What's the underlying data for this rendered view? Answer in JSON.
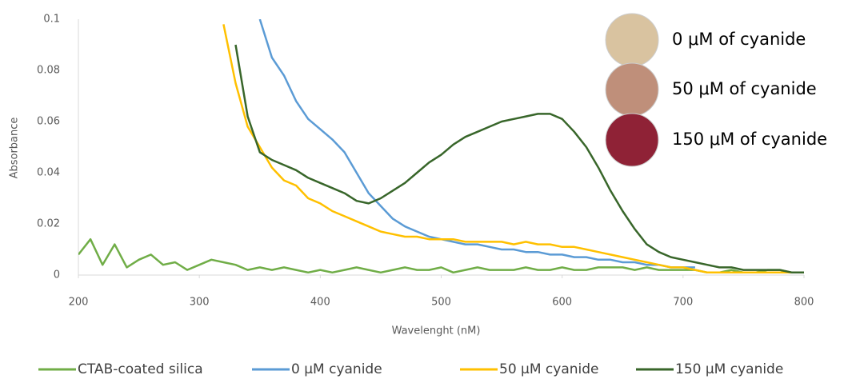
{
  "chart_data": {
    "type": "line",
    "x_label": "Wavelenght (nM)",
    "y_label": "Absorbance",
    "xlim": [
      200,
      800
    ],
    "xticks": [
      200,
      300,
      400,
      500,
      600,
      700,
      800
    ],
    "ylim": [
      0,
      0.1
    ],
    "yticks": [
      0,
      0.02,
      0.04,
      0.06,
      0.08,
      0.1
    ],
    "grid": false,
    "legend": "bottom",
    "annotations": [
      "0 μM of cyanide",
      "50 μM of cyanide",
      "150 μM of cyanide"
    ],
    "x": [
      200,
      210,
      220,
      230,
      240,
      250,
      260,
      270,
      280,
      290,
      300,
      310,
      320,
      330,
      340,
      350,
      360,
      370,
      380,
      390,
      400,
      410,
      420,
      430,
      440,
      450,
      460,
      470,
      480,
      490,
      500,
      510,
      520,
      530,
      540,
      550,
      560,
      570,
      580,
      590,
      600,
      610,
      620,
      630,
      640,
      650,
      660,
      670,
      680,
      690,
      700,
      710,
      720,
      730,
      740,
      750,
      760,
      770,
      780,
      790,
      800
    ],
    "series": [
      {
        "name": "CTAB-coated silica",
        "color": "#70ad47",
        "values": [
          0.008,
          0.014,
          0.004,
          0.012,
          0.003,
          0.006,
          0.008,
          0.004,
          0.005,
          0.002,
          0.004,
          0.006,
          0.005,
          0.004,
          0.002,
          0.003,
          0.002,
          0.003,
          0.002,
          0.001,
          0.002,
          0.001,
          0.002,
          0.003,
          0.002,
          0.001,
          0.002,
          0.003,
          0.002,
          0.002,
          0.003,
          0.001,
          0.002,
          0.003,
          0.002,
          0.002,
          0.002,
          0.003,
          0.002,
          0.002,
          0.003,
          0.002,
          0.002,
          0.003,
          0.003,
          0.003,
          0.002,
          0.003,
          0.002,
          0.002,
          0.002,
          0.002,
          0.001,
          0.001,
          0.002,
          0.001,
          0.001,
          0.002,
          0.002,
          0.001,
          0.001
        ]
      },
      {
        "name": "0 μM cyanide",
        "color": "#5b9bd5",
        "values": [
          null,
          null,
          null,
          null,
          null,
          null,
          null,
          null,
          null,
          null,
          null,
          null,
          null,
          null,
          null,
          0.1,
          0.085,
          0.078,
          0.068,
          0.061,
          0.057,
          0.053,
          0.048,
          0.04,
          0.032,
          0.027,
          0.022,
          0.019,
          0.017,
          0.015,
          0.014,
          0.013,
          0.012,
          0.012,
          0.011,
          0.01,
          0.01,
          0.009,
          0.009,
          0.008,
          0.008,
          0.007,
          0.007,
          0.006,
          0.006,
          0.005,
          0.005,
          0.004,
          0.004,
          0.003,
          0.003,
          0.003,
          null,
          null,
          null,
          null,
          null,
          null,
          null,
          null,
          null
        ]
      },
      {
        "name": "50 μM cyanide",
        "color": "#ffc000",
        "values": [
          null,
          null,
          null,
          null,
          null,
          null,
          null,
          null,
          null,
          null,
          null,
          null,
          0.098,
          0.075,
          0.058,
          0.05,
          0.042,
          0.037,
          0.035,
          0.03,
          0.028,
          0.025,
          0.023,
          0.021,
          0.019,
          0.017,
          0.016,
          0.015,
          0.015,
          0.014,
          0.014,
          0.014,
          0.013,
          0.013,
          0.013,
          0.013,
          0.012,
          0.013,
          0.012,
          0.012,
          0.011,
          0.011,
          0.01,
          0.009,
          0.008,
          0.007,
          0.006,
          0.005,
          0.004,
          0.003,
          0.003,
          0.002,
          0.001,
          0.001,
          0.001,
          0.001,
          0.001,
          0.001,
          0.001,
          0.001,
          0.001
        ]
      },
      {
        "name": "150 μM cyanide",
        "color": "#38662a",
        "values": [
          null,
          null,
          null,
          null,
          null,
          null,
          null,
          null,
          null,
          null,
          null,
          null,
          null,
          0.09,
          0.062,
          0.048,
          0.045,
          0.043,
          0.041,
          0.038,
          0.036,
          0.034,
          0.032,
          0.029,
          0.028,
          0.03,
          0.033,
          0.036,
          0.04,
          0.044,
          0.047,
          0.051,
          0.054,
          0.056,
          0.058,
          0.06,
          0.061,
          0.062,
          0.063,
          0.063,
          0.061,
          0.056,
          0.05,
          0.042,
          0.033,
          0.025,
          0.018,
          0.012,
          0.009,
          0.007,
          0.006,
          0.005,
          0.004,
          0.003,
          0.003,
          0.002,
          0.002,
          0.002,
          0.002,
          0.001,
          0.001
        ]
      }
    ]
  }
}
